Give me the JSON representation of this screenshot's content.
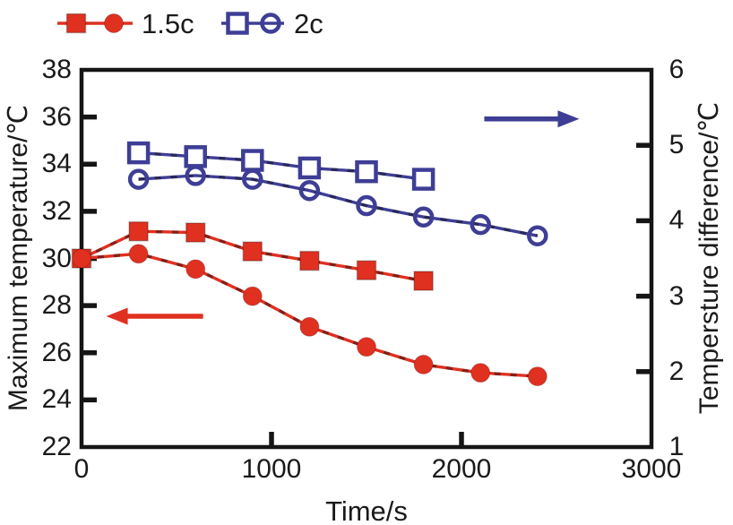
{
  "figure": {
    "background": "#ffffff",
    "frame_color": "#151515"
  },
  "colors": {
    "red_series": "#e03020",
    "blue_series": "#3e3e96",
    "axis": "#151515",
    "text": "#1a1a1a"
  },
  "chart_data": {
    "type": "line",
    "title": "",
    "xlabel": "Time/s",
    "ylabel_left": "Maximum temperature/℃",
    "ylabel_right": "Tempersture difference/℃",
    "xlim": [
      0,
      3000
    ],
    "x_ticks": [
      0,
      1000,
      2000,
      3000
    ],
    "ylim_left": [
      22,
      38
    ],
    "left_ticks": [
      22,
      24,
      26,
      28,
      30,
      32,
      34,
      36,
      38
    ],
    "ylim_right": [
      1,
      6
    ],
    "right_ticks": [
      1,
      2,
      3,
      4,
      5,
      6
    ],
    "grid": false,
    "legend": {
      "position": "top",
      "entries": [
        {
          "label": "1.5c",
          "color": "#e03020",
          "markers": [
            "filled-square",
            "filled-circle"
          ]
        },
        {
          "label": "2c",
          "color": "#3e3e96",
          "markers": [
            "open-square",
            "open-circle"
          ]
        }
      ]
    },
    "series": [
      {
        "name": "1.5c maximum temperature (squares)",
        "axis": "left",
        "color": "#e03020",
        "marker": "filled-square",
        "x": [
          0,
          300,
          600,
          900,
          1200,
          1500,
          1800
        ],
        "y": [
          30.0,
          31.15,
          31.1,
          30.3,
          29.9,
          29.5,
          29.05
        ]
      },
      {
        "name": "1.5c maximum temperature (circles)",
        "axis": "left",
        "color": "#e03020",
        "marker": "filled-circle",
        "x": [
          0,
          300,
          600,
          900,
          1200,
          1500,
          1800,
          2100,
          2400
        ],
        "y": [
          30.0,
          30.2,
          29.55,
          28.4,
          27.1,
          26.25,
          25.5,
          25.15,
          25.0
        ]
      },
      {
        "name": "2c temperature difference (squares)",
        "axis": "right",
        "color": "#3e3e96",
        "marker": "open-square",
        "x": [
          300,
          600,
          900,
          1200,
          1500,
          1800
        ],
        "y": [
          4.9,
          4.85,
          4.8,
          4.7,
          4.65,
          4.55
        ]
      },
      {
        "name": "2c temperature difference (circles)",
        "axis": "right",
        "color": "#3e3e96",
        "marker": "open-circle",
        "x": [
          300,
          600,
          900,
          1200,
          1500,
          1800,
          2100,
          2400
        ],
        "y": [
          4.55,
          4.6,
          4.55,
          4.4,
          4.2,
          4.05,
          3.95,
          3.8
        ]
      }
    ],
    "annotations": [
      {
        "type": "arrow",
        "axis": "left",
        "direction": "left",
        "color": "#e03020",
        "value": 27.55,
        "x_from": 640,
        "x_to": 130
      },
      {
        "type": "arrow",
        "axis": "right",
        "direction": "right",
        "color": "#3e3e96",
        "value": 5.35,
        "x_from": 2120,
        "x_to": 2620
      }
    ]
  }
}
